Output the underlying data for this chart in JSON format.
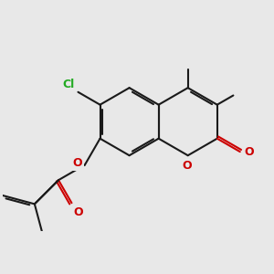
{
  "bg_color": "#e8e8e8",
  "bond_color": "#1a1a1a",
  "oxygen_color": "#cc0000",
  "chlorine_color": "#22aa22",
  "lw": 1.5,
  "dbo": 0.055,
  "bl": 1.0,
  "xlim": [
    0.5,
    7.5
  ],
  "ylim": [
    0.3,
    5.2
  ]
}
